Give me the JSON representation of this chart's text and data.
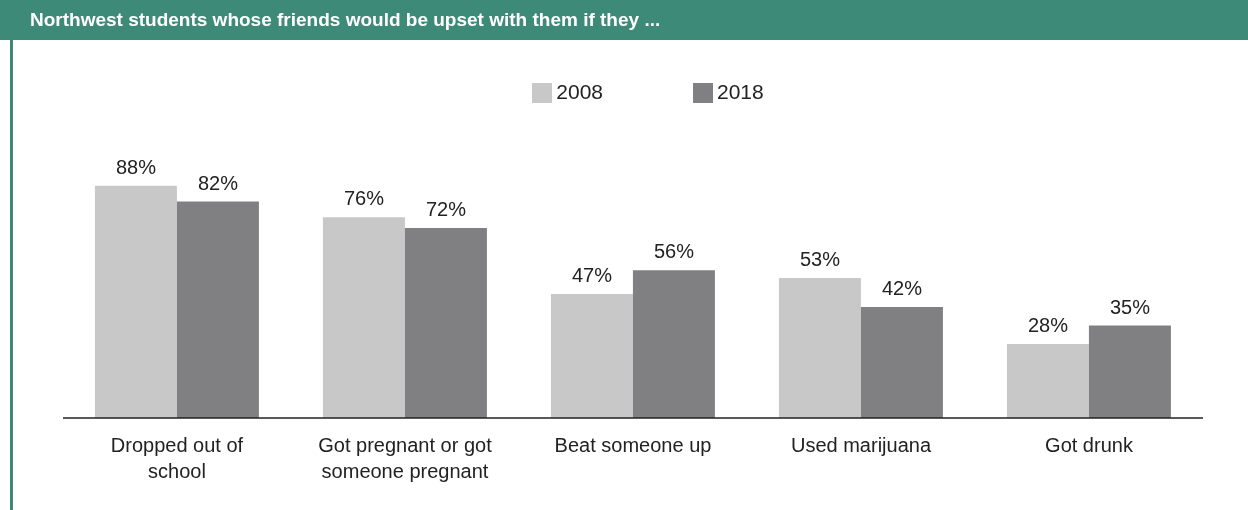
{
  "chart_data": {
    "type": "bar",
    "title": "Northwest students whose friends would be upset with them if they ...",
    "categories": [
      "Dropped out of school",
      "Got pregnant or got someone pregnant",
      "Beat someone up",
      "Used marijuana",
      "Got drunk"
    ],
    "relative": false,
    "series": [
      {
        "name": "2008",
        "color": "#c8c8c9",
        "values": [
          88,
          76,
          47,
          53,
          28
        ],
        "value_labels": [
          "88%",
          "76%",
          "47%",
          "53%",
          "28%"
        ]
      },
      {
        "name": "2018",
        "color": "#808083",
        "values": [
          82,
          72,
          56,
          42,
          35
        ],
        "value_labels": [
          "82%",
          "72%",
          "56%",
          "42%",
          "35%"
        ]
      }
    ],
    "legend": "top"
  }
}
